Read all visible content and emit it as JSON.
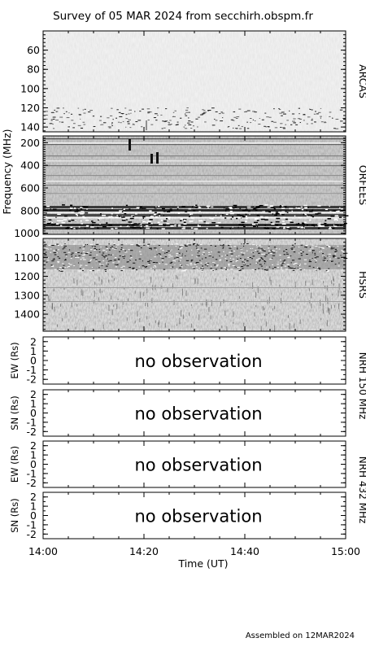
{
  "title": "Survey of 05 MAR 2024 from secchirh.obspm.fr",
  "footer": "Assembled on 12MAR2024",
  "chart_data": {
    "type": "heatmap",
    "xlabel": "Time (UT)",
    "x_ticks": [
      "14:00",
      "14:20",
      "14:40",
      "15:00"
    ],
    "xlim": [
      "14:00",
      "15:00"
    ],
    "spectro_ylabel": "Frequency (MHz)",
    "spectrograms": [
      {
        "instrument": "ARCAS",
        "ylim": [
          40,
          145
        ],
        "y_ticks": [
          "60",
          "80",
          "100",
          "120",
          "140"
        ]
      },
      {
        "instrument": "ORFEES",
        "ylim": [
          140,
          1010
        ],
        "y_ticks": [
          "200",
          "400",
          "600",
          "800",
          "1000"
        ]
      },
      {
        "instrument": "HSRS",
        "ylim": [
          1000,
          1490
        ],
        "y_ticks": [
          "1100",
          "1200",
          "1300",
          "1400"
        ]
      }
    ],
    "nrh_panels": [
      {
        "ylabel": "EW (Rs)",
        "ylim": [
          -2.5,
          2.5
        ],
        "y_ticks": [
          "2",
          "1",
          "0",
          "-1",
          "-2"
        ],
        "message": "no observation"
      },
      {
        "ylabel": "SN (Rs)",
        "ylim": [
          -2.5,
          2.5
        ],
        "y_ticks": [
          "2",
          "1",
          "0",
          "-1",
          "-2"
        ],
        "message": "no observation"
      },
      {
        "ylabel": "EW (Rs)",
        "ylim": [
          -2.5,
          2.5
        ],
        "y_ticks": [
          "2",
          "1",
          "0",
          "-1",
          "-2"
        ],
        "message": "no observation"
      },
      {
        "ylabel": "SN (Rs)",
        "ylim": [
          -2.5,
          2.5
        ],
        "y_ticks": [
          "2",
          "1",
          "0",
          "-1",
          "-2"
        ],
        "message": "no observation"
      }
    ],
    "nrh_labels": [
      "NRH 150 MHz",
      "NRH 432 MHz"
    ]
  }
}
